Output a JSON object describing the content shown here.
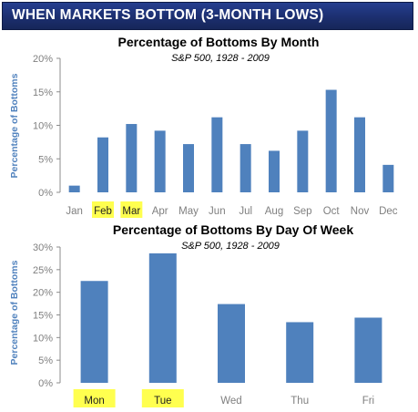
{
  "banner": {
    "title": "WHEN MARKETS BOTTOM (3-MONTH LOWS)"
  },
  "colors": {
    "bar": "#4f81bd",
    "highlight": "#ffff4f",
    "axis_label": "#4f81bd",
    "tick": "#7f7f7f",
    "banner": "#1c2f6f"
  },
  "chart_data": [
    {
      "type": "bar",
      "title": "Percentage of Bottoms By Month",
      "subtitle": "S&P 500, 1928 - 2009",
      "xlabel": "",
      "ylabel": "Percentage of Bottoms",
      "categories": [
        "Jan",
        "Feb",
        "Mar",
        "Apr",
        "May",
        "Jun",
        "Jul",
        "Aug",
        "Sep",
        "Oct",
        "Nov",
        "Dec"
      ],
      "values": [
        1,
        8.2,
        10.2,
        9.2,
        7.2,
        11.2,
        7.2,
        6.2,
        9.2,
        15.3,
        11.2,
        4.1
      ],
      "yticks": [
        "0%",
        "5%",
        "10%",
        "15%",
        "20%"
      ],
      "ylim": [
        0,
        20
      ],
      "highlighted_categories": [
        "Feb",
        "Mar"
      ],
      "grid": false,
      "legend": "none"
    },
    {
      "type": "bar",
      "title": "Percentage of Bottoms By Day Of Week",
      "subtitle": "S&P 500, 1928 - 2009",
      "xlabel": "",
      "ylabel": "Percentage of Bottoms",
      "categories": [
        "Mon",
        "Tue",
        "Wed",
        "Thu",
        "Fri"
      ],
      "values": [
        22.5,
        28.6,
        17.4,
        13.4,
        14.4
      ],
      "yticks": [
        "0%",
        "5%",
        "10%",
        "15%",
        "20%",
        "25%",
        "30%"
      ],
      "ylim": [
        0,
        30
      ],
      "highlighted_categories": [
        "Mon",
        "Tue"
      ],
      "grid": false,
      "legend": "none"
    }
  ]
}
